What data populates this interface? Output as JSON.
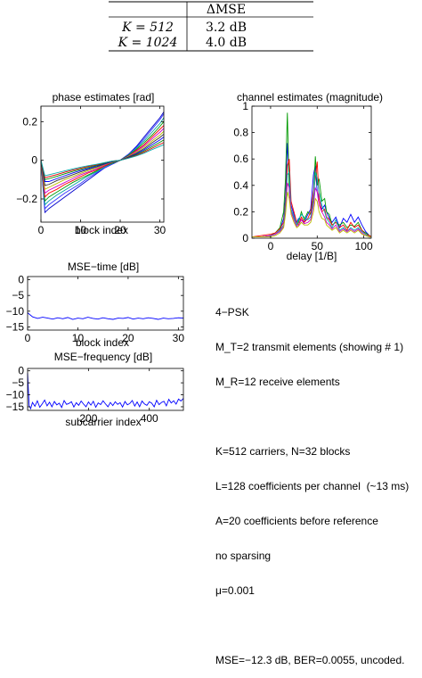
{
  "table": {
    "header": [
      "",
      "ΔMSE"
    ],
    "rows": [
      [
        "K = 512",
        "3.2 dB"
      ],
      [
        "K = 1024",
        "4.0 dB"
      ]
    ]
  },
  "info": {
    "modulation": "4−PSK",
    "tx_elements": "M_T=2 transmit elements (showing # 1)",
    "rx_elements": "M_R=12 receive elements",
    "carriers": "K=512 carriers, N=32 blocks",
    "coefficients": "L=128 coefficients per channel  (~13 ms)",
    "before_ref": "A=20 coefficients before reference",
    "sparsing": "no sparsing",
    "mu": "μ=0.001",
    "result": "MSE=−12.3 dB, BER=0.0055, uncoded."
  },
  "chart_data": [
    {
      "type": "line",
      "title": "phase estimates [rad]",
      "xlabel": "block index",
      "ylabel": "",
      "xlim": [
        0,
        31
      ],
      "ylim": [
        -0.32,
        0.28
      ],
      "xticks": [
        0,
        10,
        20,
        30
      ],
      "yticks": [
        -0.2,
        0,
        0.2
      ],
      "grid": false,
      "x": [
        0,
        1,
        2,
        4,
        6,
        8,
        10,
        12,
        14,
        16,
        18,
        20,
        22,
        24,
        26,
        28,
        30,
        31
      ],
      "series": [
        {
          "color": "#0000cc",
          "values": [
            0.0,
            -0.27,
            -0.25,
            -0.22,
            -0.19,
            -0.16,
            -0.13,
            -0.1,
            -0.07,
            -0.04,
            -0.02,
            0.0,
            0.03,
            0.07,
            0.12,
            0.17,
            0.22,
            0.25
          ]
        },
        {
          "color": "#3333ff",
          "values": [
            0.0,
            -0.25,
            -0.23,
            -0.2,
            -0.17,
            -0.145,
            -0.12,
            -0.09,
            -0.065,
            -0.04,
            -0.02,
            0.0,
            0.03,
            0.065,
            0.11,
            0.16,
            0.21,
            0.24
          ]
        },
        {
          "color": "#00a0a0",
          "values": [
            0.0,
            -0.23,
            -0.21,
            -0.18,
            -0.155,
            -0.13,
            -0.105,
            -0.08,
            -0.06,
            -0.035,
            -0.015,
            0.0,
            0.025,
            0.06,
            0.1,
            0.145,
            0.19,
            0.22
          ]
        },
        {
          "color": "#009900",
          "values": [
            0.0,
            -0.21,
            -0.19,
            -0.165,
            -0.14,
            -0.115,
            -0.095,
            -0.075,
            -0.055,
            -0.03,
            -0.015,
            0.0,
            0.025,
            0.055,
            0.09,
            0.13,
            0.175,
            0.2
          ]
        },
        {
          "color": "#ff0000",
          "values": [
            0.0,
            -0.19,
            -0.17,
            -0.15,
            -0.125,
            -0.105,
            -0.085,
            -0.065,
            -0.05,
            -0.03,
            -0.01,
            0.0,
            0.02,
            0.05,
            0.08,
            0.12,
            0.16,
            0.18
          ]
        },
        {
          "color": "#cc00cc",
          "values": [
            0.0,
            -0.17,
            -0.155,
            -0.135,
            -0.115,
            -0.095,
            -0.075,
            -0.06,
            -0.045,
            -0.025,
            -0.01,
            0.0,
            0.02,
            0.045,
            0.075,
            0.11,
            0.145,
            0.165
          ]
        },
        {
          "color": "#bbbb00",
          "values": [
            0.0,
            -0.15,
            -0.14,
            -0.12,
            -0.1,
            -0.085,
            -0.068,
            -0.053,
            -0.04,
            -0.022,
            -0.008,
            0.0,
            0.018,
            0.04,
            0.068,
            0.1,
            0.13,
            0.15
          ]
        },
        {
          "color": "#333333",
          "values": [
            0.0,
            -0.13,
            -0.125,
            -0.105,
            -0.09,
            -0.075,
            -0.06,
            -0.047,
            -0.035,
            -0.02,
            -0.007,
            0.0,
            0.016,
            0.036,
            0.06,
            0.09,
            0.118,
            0.135
          ]
        },
        {
          "color": "#0000ff",
          "values": [
            0.0,
            -0.11,
            -0.11,
            -0.095,
            -0.08,
            -0.066,
            -0.053,
            -0.042,
            -0.031,
            -0.018,
            -0.006,
            0.0,
            0.014,
            0.032,
            0.054,
            0.08,
            0.105,
            0.12
          ]
        },
        {
          "color": "#008800",
          "values": [
            0.0,
            -0.1,
            -0.095,
            -0.083,
            -0.07,
            -0.058,
            -0.047,
            -0.037,
            -0.027,
            -0.015,
            -0.005,
            0.0,
            0.012,
            0.028,
            0.048,
            0.07,
            0.093,
            0.105
          ]
        },
        {
          "color": "#dd0000",
          "values": [
            0.0,
            -0.09,
            -0.085,
            -0.074,
            -0.062,
            -0.051,
            -0.041,
            -0.032,
            -0.024,
            -0.013,
            -0.004,
            0.0,
            0.011,
            0.025,
            0.042,
            0.062,
            0.082,
            0.092
          ]
        },
        {
          "color": "#00aaaa",
          "values": [
            0.0,
            -0.08,
            -0.075,
            -0.065,
            -0.055,
            -0.045,
            -0.036,
            -0.028,
            -0.021,
            -0.012,
            -0.004,
            0.0,
            0.01,
            0.022,
            0.037,
            0.055,
            0.072,
            0.081
          ]
        }
      ]
    },
    {
      "type": "line",
      "title": "channel estimates (magnitude)",
      "xlabel": "delay [1/B]",
      "ylabel": "",
      "xlim": [
        -20,
        108
      ],
      "ylim": [
        0,
        1
      ],
      "xticks": [
        0,
        50,
        100
      ],
      "yticks": [
        0,
        0.2,
        0.4,
        0.6,
        0.8,
        1
      ],
      "grid": false,
      "x": [
        -20,
        -10,
        0,
        5,
        10,
        14,
        16,
        18,
        20,
        22,
        25,
        28,
        30,
        33,
        36,
        40,
        43,
        46,
        48,
        50,
        52,
        55,
        58,
        60,
        63,
        66,
        70,
        74,
        78,
        82,
        86,
        90,
        94,
        98,
        102,
        106,
        108
      ],
      "series": [
        {
          "color": "#0000ff",
          "values": [
            0.01,
            0.01,
            0.02,
            0.03,
            0.06,
            0.15,
            0.32,
            0.72,
            0.45,
            0.25,
            0.18,
            0.12,
            0.15,
            0.14,
            0.12,
            0.18,
            0.22,
            0.48,
            0.55,
            0.35,
            0.3,
            0.22,
            0.25,
            0.2,
            0.15,
            0.12,
            0.16,
            0.08,
            0.15,
            0.12,
            0.18,
            0.12,
            0.16,
            0.1,
            0.05,
            0.02,
            0.01
          ]
        },
        {
          "color": "#009900",
          "values": [
            0.01,
            0.01,
            0.02,
            0.04,
            0.08,
            0.2,
            0.45,
            0.95,
            0.35,
            0.2,
            0.15,
            0.1,
            0.12,
            0.2,
            0.14,
            0.2,
            0.18,
            0.3,
            0.62,
            0.4,
            0.45,
            0.28,
            0.3,
            0.2,
            0.18,
            0.1,
            0.12,
            0.1,
            0.12,
            0.08,
            0.1,
            0.09,
            0.12,
            0.06,
            0.04,
            0.02,
            0.01
          ]
        },
        {
          "color": "#ff0000",
          "values": [
            0.01,
            0.02,
            0.03,
            0.04,
            0.07,
            0.12,
            0.28,
            0.55,
            0.6,
            0.28,
            0.2,
            0.12,
            0.1,
            0.16,
            0.12,
            0.15,
            0.2,
            0.35,
            0.45,
            0.58,
            0.3,
            0.2,
            0.22,
            0.16,
            0.14,
            0.1,
            0.12,
            0.08,
            0.1,
            0.06,
            0.12,
            0.08,
            0.1,
            0.06,
            0.03,
            0.02,
            0.01
          ]
        },
        {
          "color": "#00b0b0",
          "values": [
            0.01,
            0.01,
            0.02,
            0.03,
            0.06,
            0.1,
            0.25,
            0.48,
            0.5,
            0.22,
            0.16,
            0.1,
            0.14,
            0.18,
            0.16,
            0.14,
            0.16,
            0.28,
            0.5,
            0.45,
            0.35,
            0.25,
            0.2,
            0.15,
            0.12,
            0.08,
            0.14,
            0.06,
            0.08,
            0.05,
            0.08,
            0.06,
            0.08,
            0.05,
            0.03,
            0.01,
            0.01
          ]
        },
        {
          "color": "#cc00cc",
          "values": [
            0.01,
            0.01,
            0.02,
            0.03,
            0.05,
            0.09,
            0.2,
            0.42,
            0.38,
            0.2,
            0.14,
            0.09,
            0.1,
            0.14,
            0.11,
            0.12,
            0.14,
            0.25,
            0.38,
            0.35,
            0.25,
            0.2,
            0.16,
            0.12,
            0.1,
            0.07,
            0.1,
            0.05,
            0.07,
            0.05,
            0.07,
            0.05,
            0.07,
            0.04,
            0.02,
            0.01,
            0.01
          ]
        },
        {
          "color": "#bbbb00",
          "values": [
            0.01,
            0.01,
            0.01,
            0.02,
            0.04,
            0.08,
            0.18,
            0.35,
            0.3,
            0.18,
            0.12,
            0.08,
            0.09,
            0.12,
            0.1,
            0.1,
            0.12,
            0.2,
            0.3,
            0.28,
            0.2,
            0.15,
            0.14,
            0.1,
            0.08,
            0.06,
            0.08,
            0.04,
            0.06,
            0.04,
            0.06,
            0.04,
            0.06,
            0.03,
            0.02,
            0.01,
            0.01
          ]
        }
      ]
    },
    {
      "type": "line",
      "title": "MSE−time [dB]",
      "xlabel": "block index",
      "ylabel": "",
      "xlim": [
        0,
        31
      ],
      "ylim": [
        -16,
        1
      ],
      "xticks": [
        0,
        10,
        20,
        30
      ],
      "yticks": [
        -15,
        -10,
        -5,
        0
      ],
      "grid": false,
      "x": [
        0,
        1,
        2,
        3,
        4,
        5,
        6,
        7,
        8,
        9,
        10,
        11,
        12,
        13,
        14,
        15,
        16,
        17,
        18,
        19,
        20,
        21,
        22,
        23,
        24,
        25,
        26,
        27,
        28,
        29,
        30,
        31
      ],
      "series": [
        {
          "color": "#0000ff",
          "values": [
            -10.5,
            -11.8,
            -12.3,
            -11.9,
            -12.2,
            -12.5,
            -12.1,
            -12.4,
            -12.0,
            -12.6,
            -12.2,
            -12.4,
            -11.9,
            -12.3,
            -12.5,
            -12.1,
            -12.4,
            -12.6,
            -12.2,
            -12.3,
            -12.0,
            -12.5,
            -12.2,
            -12.4,
            -12.1,
            -12.3,
            -12.6,
            -12.2,
            -12.4,
            -12.3,
            -12.1,
            -12.2
          ]
        }
      ]
    },
    {
      "type": "line",
      "title": "MSE−frequency [dB]",
      "xlabel": "subcarrier index",
      "ylabel": "",
      "xlim": [
        0,
        512
      ],
      "ylim": [
        -16.5,
        1
      ],
      "xticks": [
        200,
        400
      ],
      "yticks": [
        -15,
        -10,
        -5,
        0
      ],
      "grid": false,
      "x": [
        0,
        5,
        10,
        16,
        24,
        32,
        40,
        48,
        56,
        64,
        72,
        80,
        88,
        96,
        104,
        112,
        120,
        128,
        136,
        144,
        152,
        160,
        168,
        176,
        184,
        192,
        200,
        208,
        216,
        224,
        232,
        240,
        248,
        256,
        264,
        272,
        280,
        288,
        296,
        304,
        312,
        320,
        328,
        336,
        344,
        352,
        360,
        368,
        376,
        384,
        392,
        400,
        408,
        416,
        424,
        432,
        440,
        448,
        456,
        464,
        472,
        480,
        488,
        496,
        504,
        512
      ],
      "series": [
        {
          "color": "#0000ff",
          "values": [
            -1.0,
            -14.5,
            -15.8,
            -13.2,
            -14.8,
            -12.5,
            -15.2,
            -13.8,
            -12.2,
            -14.6,
            -13.1,
            -15.0,
            -12.8,
            -14.2,
            -13.5,
            -15.3,
            -12.4,
            -14.0,
            -13.6,
            -12.9,
            -15.1,
            -13.3,
            -14.4,
            -12.6,
            -13.9,
            -15.0,
            -13.0,
            -14.3,
            -12.7,
            -15.2,
            -13.4,
            -14.1,
            -12.5,
            -13.8,
            -15.0,
            -13.2,
            -14.5,
            -12.9,
            -14.0,
            -13.3,
            -15.1,
            -12.8,
            -14.2,
            -13.6,
            -12.4,
            -14.7,
            -13.0,
            -15.0,
            -12.6,
            -13.8,
            -14.4,
            -12.9,
            -13.5,
            -15.0,
            -12.3,
            -14.1,
            -13.2,
            -12.7,
            -14.6,
            -11.9,
            -13.4,
            -12.5,
            -13.9,
            -11.8,
            -12.6,
            -11.5
          ]
        }
      ]
    }
  ]
}
